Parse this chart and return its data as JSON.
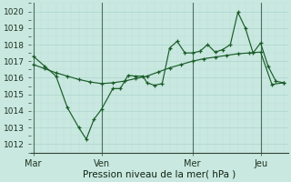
{
  "xlabel": "Pression niveau de la mer( hPa )",
  "ylim": [
    1011.5,
    1020.5
  ],
  "xlim": [
    -0.1,
    11.2
  ],
  "bg_color": "#c8e8e0",
  "grid_major_color": "#aed4cc",
  "grid_minor_color": "#beddda",
  "line_color": "#1a5c28",
  "vline_color": "#4a7060",
  "day_labels": [
    "Mar",
    "Ven",
    "Mer",
    "Jeu"
  ],
  "day_positions": [
    0,
    3,
    7,
    10
  ],
  "yticks": [
    1012,
    1013,
    1014,
    1015,
    1016,
    1017,
    1018,
    1019,
    1020
  ],
  "line1_x": [
    0,
    0.5,
    1.0,
    1.5,
    2.0,
    2.33,
    2.67,
    3.0,
    3.5,
    3.83,
    4.17,
    4.5,
    4.83,
    5.0,
    5.33,
    5.67,
    6.0,
    6.33,
    6.67,
    7.0,
    7.33,
    7.67,
    8.0,
    8.33,
    8.67,
    9.0,
    9.33,
    9.67,
    10.0,
    10.33,
    10.67,
    11.0
  ],
  "line1_y": [
    1017.3,
    1016.7,
    1016.1,
    1014.2,
    1013.0,
    1012.3,
    1013.5,
    1014.1,
    1015.35,
    1015.35,
    1016.15,
    1016.1,
    1016.1,
    1015.7,
    1015.55,
    1015.65,
    1017.8,
    1018.2,
    1017.5,
    1017.5,
    1017.6,
    1018.0,
    1017.55,
    1017.7,
    1018.0,
    1019.95,
    1019.0,
    1017.5,
    1018.1,
    1016.7,
    1015.8,
    1015.7
  ],
  "line2_x": [
    0,
    0.5,
    1.0,
    1.5,
    2.0,
    2.5,
    3.0,
    3.5,
    4.0,
    4.5,
    5.0,
    5.5,
    6.0,
    6.5,
    7.0,
    7.5,
    8.0,
    8.5,
    9.0,
    9.5,
    10.0,
    10.5,
    11.0
  ],
  "line2_y": [
    1016.8,
    1016.55,
    1016.3,
    1016.1,
    1015.9,
    1015.75,
    1015.65,
    1015.7,
    1015.8,
    1015.95,
    1016.1,
    1016.35,
    1016.6,
    1016.8,
    1017.0,
    1017.15,
    1017.25,
    1017.35,
    1017.45,
    1017.5,
    1017.55,
    1015.6,
    1015.7
  ]
}
